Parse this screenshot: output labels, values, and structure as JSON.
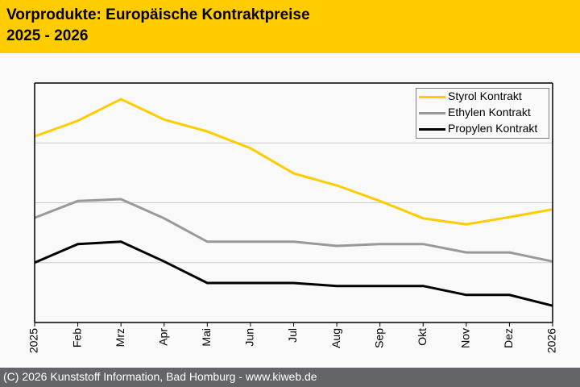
{
  "header": {
    "title_line1": "Vorprodukte: Europäische Kontraktpreise",
    "title_line2": "2025 - 2026"
  },
  "footer": {
    "text": "(C) 2026 Kunststoff Information, Bad Homburg - www.kiweb.de"
  },
  "colors": {
    "header_bg": "#ffcc00",
    "footer_bg": "#646569",
    "styrol": "#ffcc00",
    "ethylen": "#999999",
    "propylen": "#000000"
  },
  "chart_data": {
    "type": "line",
    "title": "Vorprodukte: Europäische Kontraktpreise 2025 - 2026",
    "xlabel": "",
    "ylabel": "",
    "y_axis_labels_shown": false,
    "y_units": "relative index (unlabeled axis)",
    "ylim": [
      0,
      4
    ],
    "y_gridlines": [
      1,
      2,
      3
    ],
    "grid": true,
    "legend_position": "top-right",
    "categories": [
      "2025",
      "Feb",
      "Mrz",
      "Apr",
      "Mai",
      "Jun",
      "Jul",
      "Aug",
      "Sep",
      "Okt",
      "Nov",
      "Dez",
      "2026"
    ],
    "series": [
      {
        "name": "Styrol Kontrakt",
        "color": "#ffcc00",
        "values": [
          3.11,
          3.37,
          3.73,
          3.39,
          3.19,
          2.91,
          2.49,
          2.29,
          2.03,
          1.74,
          1.64,
          1.76,
          1.89
        ]
      },
      {
        "name": "Ethylen Kontrakt",
        "color": "#999999",
        "values": [
          1.75,
          2.03,
          2.06,
          1.74,
          1.35,
          1.35,
          1.35,
          1.28,
          1.31,
          1.31,
          1.17,
          1.17,
          1.02
        ]
      },
      {
        "name": "Propylen Kontrakt",
        "color": "#000000",
        "values": [
          1.0,
          1.31,
          1.35,
          1.02,
          0.66,
          0.66,
          0.66,
          0.61,
          0.61,
          0.61,
          0.46,
          0.46,
          0.28
        ]
      }
    ]
  }
}
